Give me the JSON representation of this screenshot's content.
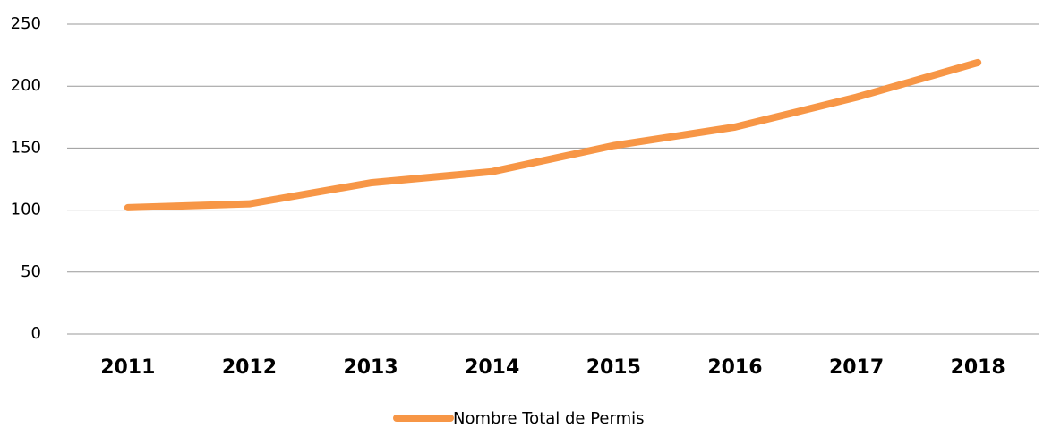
{
  "chart_data": {
    "type": "line",
    "categories": [
      "2011",
      "2012",
      "2013",
      "2014",
      "2015",
      "2016",
      "2017",
      "2018"
    ],
    "series": [
      {
        "name": "Nombre Total de Permis",
        "color": "#f79646",
        "values": [
          102,
          105,
          122,
          131,
          152,
          167,
          191,
          219
        ]
      }
    ],
    "ylim": [
      0,
      250
    ],
    "yticks": [
      0,
      50,
      100,
      150,
      200,
      250
    ],
    "grid": true,
    "legend": "bottom"
  }
}
